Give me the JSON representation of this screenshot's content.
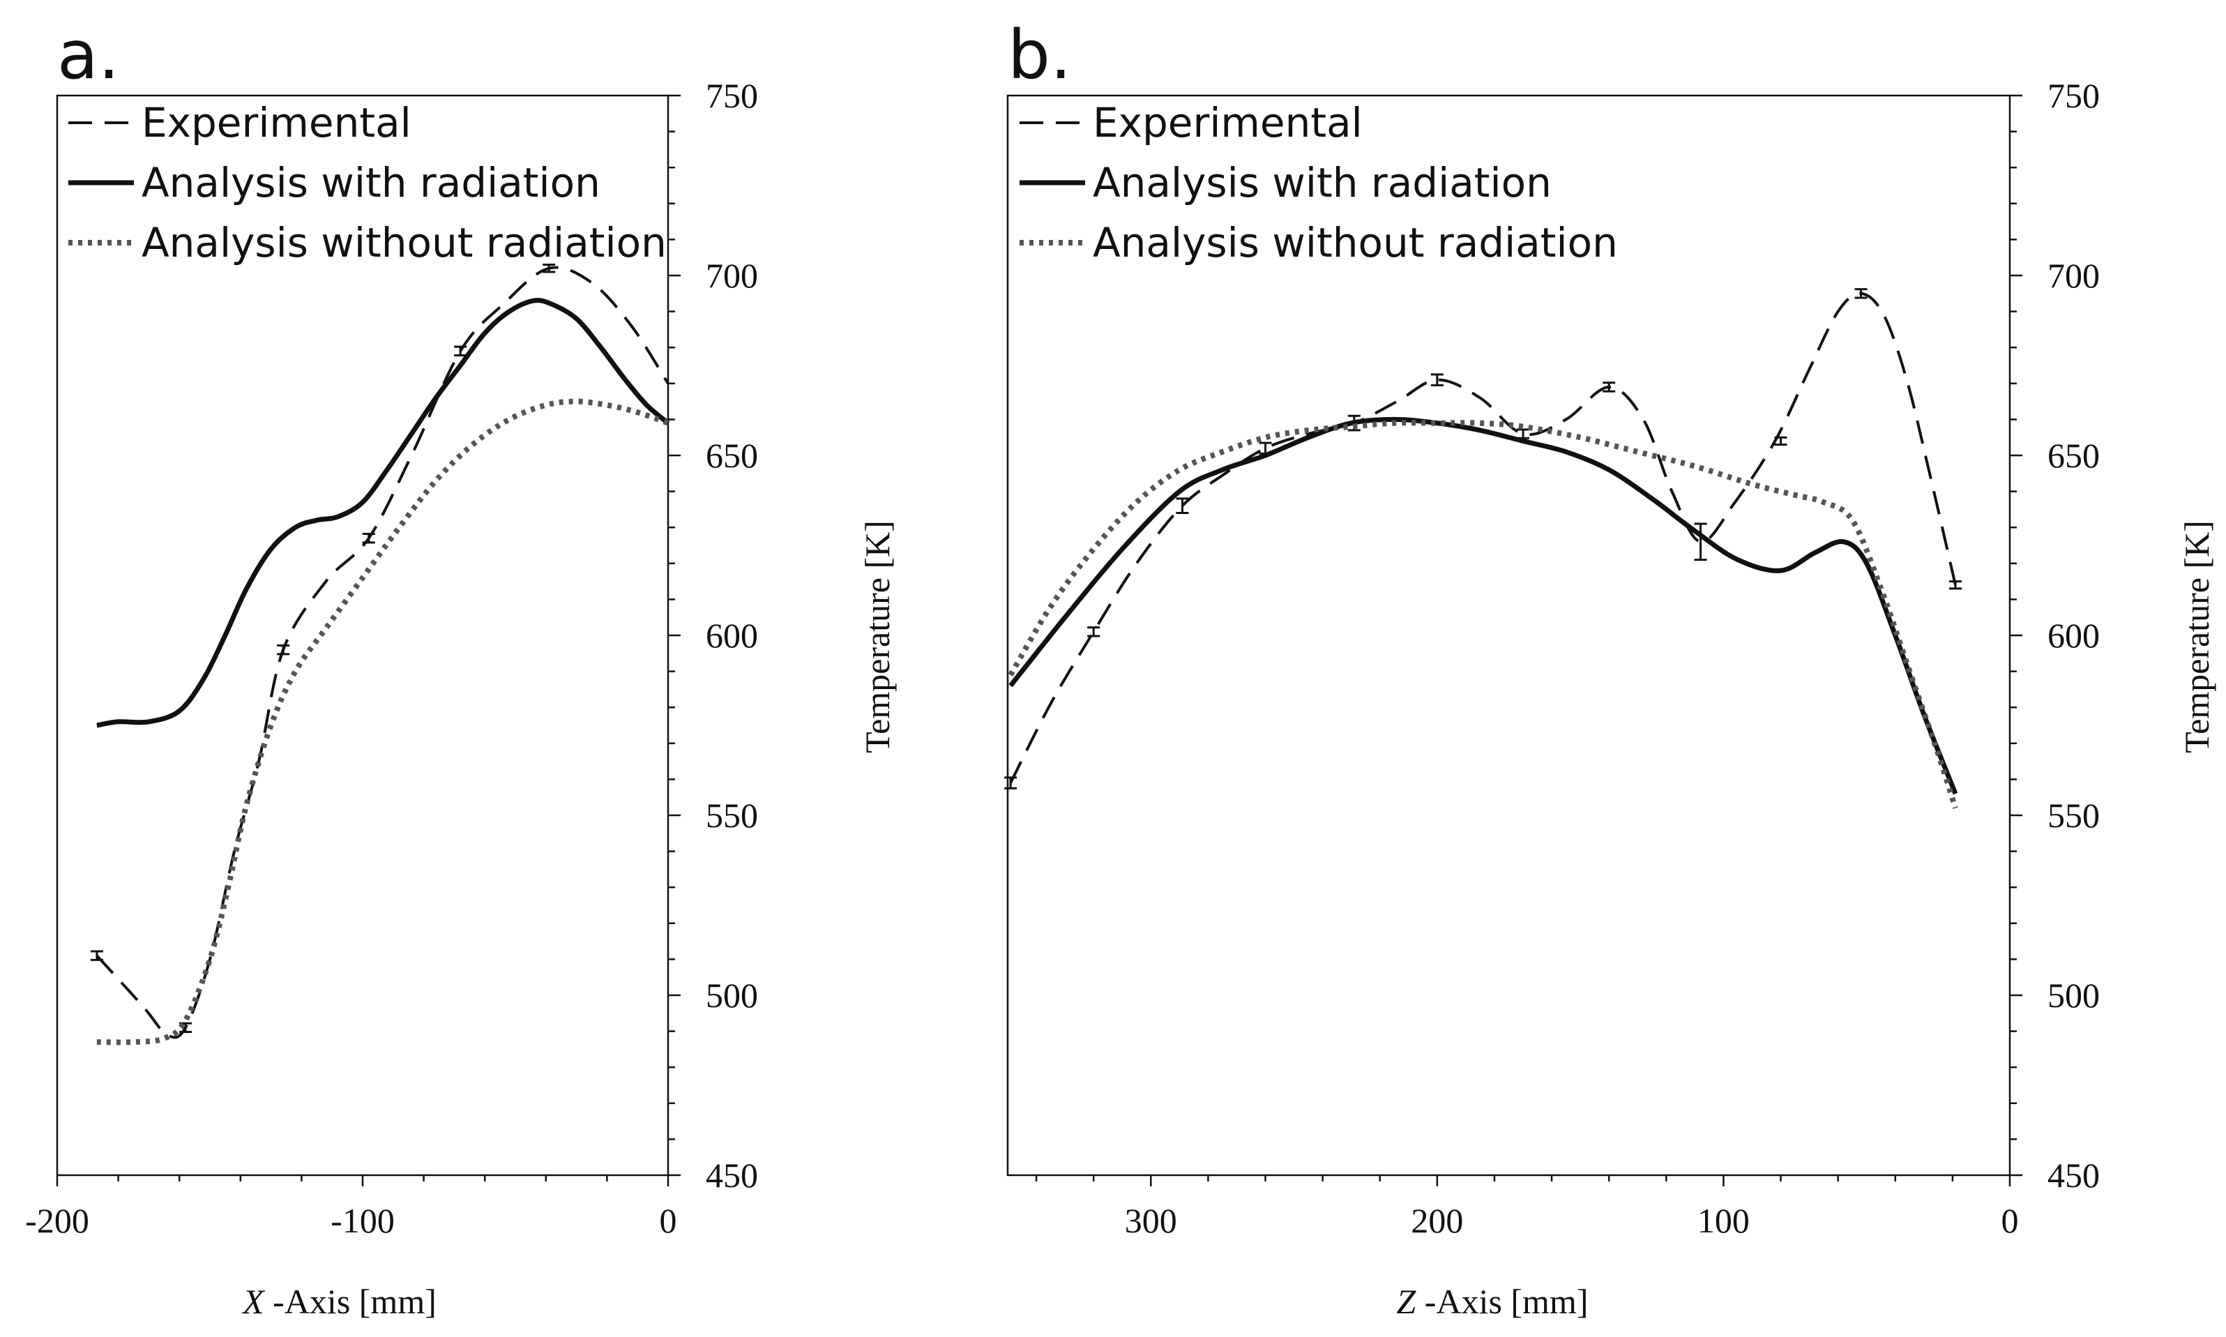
{
  "colors": {
    "ink": "#111111",
    "dotted": "#555555",
    "background": "#ffffff"
  },
  "chart_data": [
    {
      "panel_label": "a.",
      "type": "line",
      "xlabel_var": "X",
      "xlabel_rest": " -Axis [mm]",
      "ylabel": "Temperature [K]",
      "xlim": [
        -200,
        0
      ],
      "ylim": [
        450,
        750
      ],
      "xticks": [
        -200,
        -100,
        0
      ],
      "xtick_labels": [
        "-200",
        "-100",
        "0"
      ],
      "yticks": [
        450,
        500,
        550,
        600,
        650,
        700,
        750
      ],
      "ytick_labels": [
        "450",
        "500",
        "550",
        "600",
        "650",
        "700",
        "750"
      ],
      "x_minor_step": 20,
      "y_minor_step": 10,
      "legend": {
        "position": "top-left",
        "entries": [
          "Experimental",
          "Analysis with radiation",
          "Analysis without radiation"
        ]
      },
      "series": [
        {
          "name": "Experimental",
          "style": "dashed",
          "x": [
            -187,
            -172,
            -164,
            -158,
            -150,
            -142,
            -134,
            -126,
            -112,
            -98,
            -84,
            -68,
            -54,
            -39,
            -25,
            -12,
            0
          ],
          "y": [
            511,
            497,
            489,
            491,
            510,
            540,
            565,
            596,
            615,
            627,
            650,
            679,
            692,
            702,
            698,
            686,
            670
          ],
          "error_x": [
            -187,
            -158,
            -126,
            -98,
            -68,
            -39
          ],
          "error_y": [
            511,
            491,
            596,
            627,
            679,
            702
          ],
          "error_half": [
            1.2,
            1.2,
            1.2,
            1.2,
            1.2,
            1
          ]
        },
        {
          "name": "Analysis with radiation",
          "style": "solid",
          "x": [
            -187,
            -180,
            -170,
            -160,
            -152,
            -145,
            -138,
            -130,
            -122,
            -115,
            -108,
            -100,
            -92,
            -84,
            -76,
            -68,
            -60,
            -52,
            -44,
            -38,
            -30,
            -22,
            -14,
            -7,
            0
          ],
          "y": [
            575,
            576,
            576,
            579,
            588,
            600,
            613,
            624,
            630,
            632,
            633,
            637,
            646,
            656,
            666,
            675,
            684,
            690,
            693,
            692,
            688,
            680,
            671,
            664,
            659
          ],
          "error_x": [],
          "error_y": [],
          "error_half": []
        },
        {
          "name": "Analysis without radiation",
          "style": "dotted",
          "x": [
            -187,
            -175,
            -165,
            -158,
            -150,
            -144,
            -138,
            -130,
            -122,
            -112,
            -100,
            -88,
            -76,
            -64,
            -52,
            -40,
            -30,
            -20,
            -10,
            0
          ],
          "y": [
            487,
            487,
            488,
            493,
            510,
            530,
            553,
            575,
            590,
            602,
            616,
            630,
            643,
            653,
            660,
            664,
            665,
            664,
            662,
            659
          ],
          "error_x": [],
          "error_y": [],
          "error_half": []
        }
      ]
    },
    {
      "panel_label": "b.",
      "type": "line",
      "xlabel_var": "Z",
      "xlabel_rest": " -Axis [mm]",
      "ylabel": "Temperature [K]",
      "xlim": [
        350,
        0
      ],
      "ylim": [
        450,
        750
      ],
      "xticks": [
        300,
        200,
        100,
        0
      ],
      "xtick_labels": [
        "300",
        "200",
        "100",
        "0"
      ],
      "yticks": [
        450,
        500,
        550,
        600,
        650,
        700,
        750
      ],
      "ytick_labels": [
        "450",
        "500",
        "550",
        "600",
        "650",
        "700",
        "750"
      ],
      "x_minor_step": 20,
      "y_minor_step": 10,
      "legend": {
        "position": "top-left",
        "entries": [
          "Experimental",
          "Analysis with radiation",
          "Analysis without radiation"
        ]
      },
      "series": [
        {
          "name": "Experimental",
          "style": "dashed",
          "x": [
            349,
            335,
            320,
            305,
            289,
            274,
            260,
            245,
            229,
            214,
            200,
            185,
            170,
            155,
            140,
            128,
            118,
            108,
            96,
            82,
            70,
            60,
            52,
            44,
            36,
            28,
            19
          ],
          "y": [
            559,
            581,
            601,
            620,
            636,
            645,
            652,
            656,
            659,
            665,
            671,
            666,
            656,
            660,
            669,
            660,
            640,
            626,
            637,
            654,
            674,
            690,
            695,
            689,
            671,
            645,
            614
          ],
          "error_x": [
            349,
            320,
            289,
            260,
            229,
            200,
            170,
            140,
            108,
            80,
            52,
            19
          ],
          "error_y": [
            559,
            601,
            636,
            652,
            659,
            671,
            656,
            669,
            626,
            654,
            695,
            614
          ],
          "error_half": [
            1.5,
            1.2,
            2,
            1.5,
            2,
            1.5,
            1.2,
            1.2,
            5,
            1,
            1.2,
            1
          ]
        },
        {
          "name": "Analysis with radiation",
          "style": "solid",
          "x": [
            349,
            330,
            310,
            290,
            275,
            260,
            245,
            230,
            215,
            200,
            185,
            170,
            155,
            140,
            125,
            110,
            95,
            80,
            68,
            58,
            50,
            40,
            30,
            19
          ],
          "y": [
            586,
            605,
            624,
            640,
            646,
            650,
            655,
            659,
            660,
            659,
            657,
            654,
            651,
            646,
            638,
            629,
            621,
            618,
            623,
            626,
            620,
            600,
            578,
            556
          ],
          "error_x": [],
          "error_y": [],
          "error_half": []
        },
        {
          "name": "Analysis without radiation",
          "style": "dotted",
          "x": [
            349,
            335,
            320,
            305,
            290,
            275,
            260,
            245,
            230,
            215,
            200,
            185,
            170,
            150,
            130,
            110,
            90,
            75,
            65,
            55,
            45,
            35,
            25,
            19
          ],
          "y": [
            589,
            608,
            624,
            637,
            646,
            651,
            655,
            657,
            658,
            659,
            659,
            659,
            658,
            655,
            651,
            647,
            642,
            639,
            637,
            632,
            613,
            590,
            567,
            552
          ],
          "error_x": [],
          "error_y": [],
          "error_half": []
        }
      ]
    }
  ]
}
